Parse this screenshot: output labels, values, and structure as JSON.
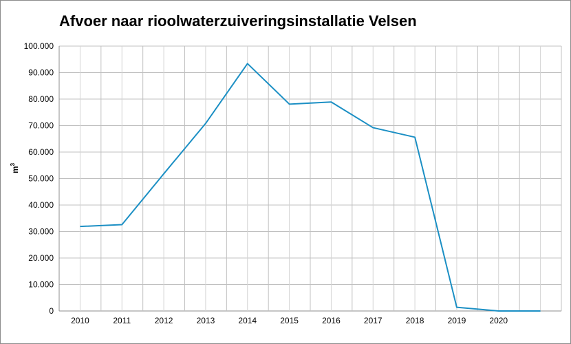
{
  "chart_data": {
    "type": "line",
    "title": "Afvoer naar rioolwaterzuiveringsinstallatie Velsen",
    "ylabel_base": "m",
    "ylabel_sup": "3",
    "xlabel": "",
    "categories": [
      "2010",
      "2011",
      "2012",
      "2013",
      "2014",
      "2015",
      "2016",
      "2017",
      "2018",
      "2019",
      "2020",
      ""
    ],
    "ylim": [
      0,
      100000
    ],
    "y_ticks": [
      "0",
      "10.000",
      "20.000",
      "30.000",
      "40.000",
      "50.000",
      "60.000",
      "70.000",
      "80.000",
      "90.000",
      "100.000"
    ],
    "grid": true,
    "series": [
      {
        "color": "#1b8fc4",
        "values": [
          31900,
          32600,
          51800,
          70800,
          93400,
          78100,
          78900,
          69200,
          65600,
          1400,
          0,
          0
        ]
      }
    ]
  }
}
